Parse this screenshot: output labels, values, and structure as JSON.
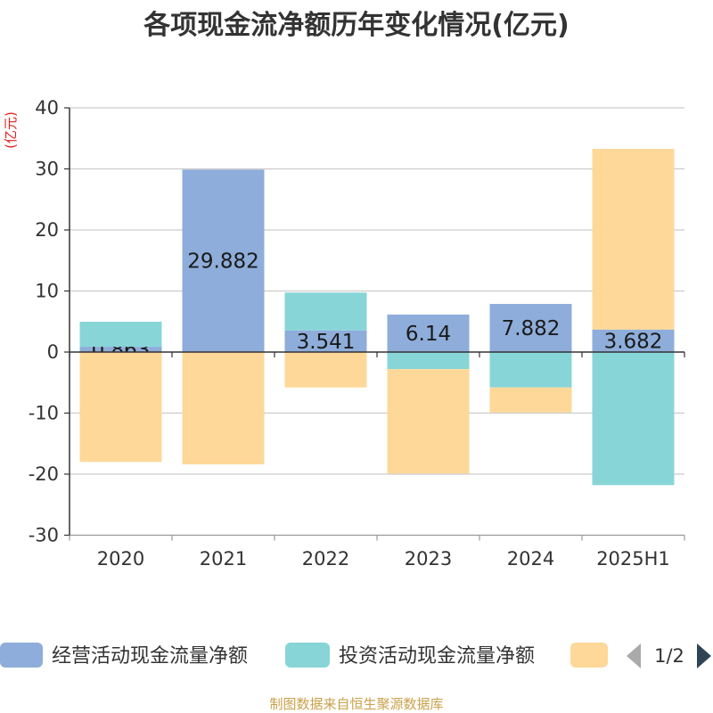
{
  "chart_data": {
    "type": "bar",
    "stacked": true,
    "title": "各项现金流净额历年变化情况(亿元)",
    "ylabel": "(亿元)",
    "categories": [
      "2020",
      "2021",
      "2022",
      "2023",
      "2024",
      "2025H1"
    ],
    "ylim": [
      -30,
      40
    ],
    "yticks": [
      40,
      30,
      20,
      10,
      0,
      -10,
      -20,
      -30
    ],
    "grid": true,
    "legend_position": "bottom",
    "series": [
      {
        "name": "经营活动现金流量净额",
        "color": "#8eadda",
        "show_labels": true,
        "values": [
          0.863,
          29.882,
          3.541,
          6.14,
          7.882,
          3.682
        ]
      },
      {
        "name": "投资活动现金流量净额",
        "color": "#87d5d7",
        "values": [
          4.1,
          0,
          6.2,
          -2.8,
          -5.8,
          -21.8
        ]
      },
      {
        "color": "#fdd898",
        "values": [
          -18.0,
          -18.4,
          -5.8,
          -17.1,
          -4.1,
          29.6
        ]
      }
    ]
  },
  "legend": {
    "page_indicator": "1/2",
    "icons": {
      "prev": "triangle-left-icon",
      "next": "triangle-right-icon"
    }
  },
  "source_note": "制图数据来自恒生聚源数据库"
}
